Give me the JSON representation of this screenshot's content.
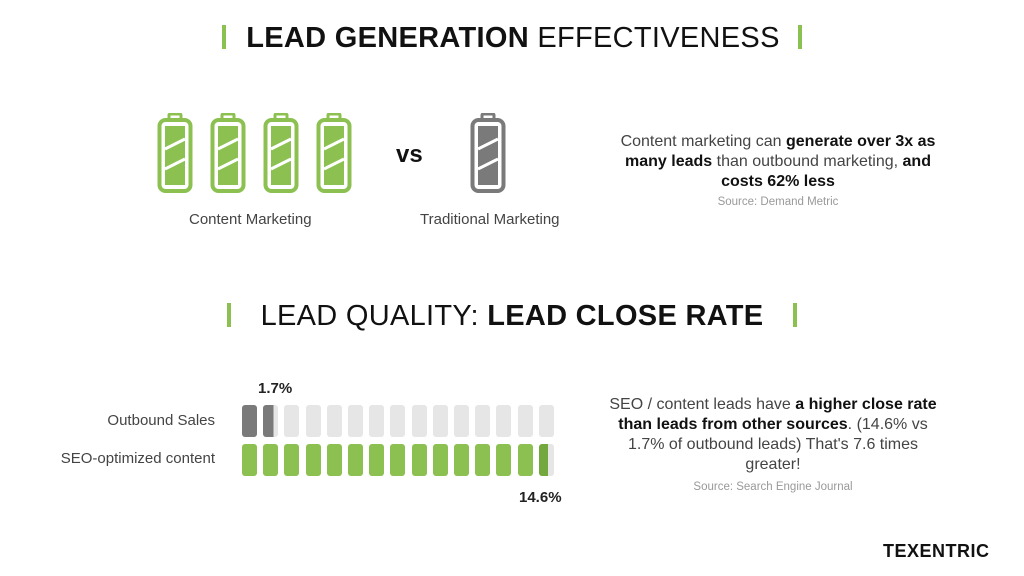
{
  "section1": {
    "title_bold": "LEAD GENERATION",
    "title_light": "EFFECTIVENESS",
    "vs_label": "vs",
    "content_label": "Content Marketing",
    "traditional_label": "Traditional Marketing",
    "statement": {
      "p1": "Content marketing can ",
      "b1": "generate over 3x as many leads",
      "p2": " than outbound marketing, ",
      "b2": "and costs 62% less"
    },
    "source": "Source: Demand Metric"
  },
  "section2": {
    "title_light": "LEAD QUALITY:",
    "title_bold": "LEAD CLOSE RATE",
    "statement": {
      "p1": "SEO / content leads have ",
      "b1": "a higher close rate than leads from other sources",
      "p2": ". (14.6% vs 1.7% of outbound leads) That's 7.6 times greater!"
    },
    "source": "Source: Search Engine Journal"
  },
  "chart_data": {
    "type": "bar",
    "title": "Lead Close Rate",
    "categories": [
      "Outbound Sales",
      "SEO-optimized content"
    ],
    "values": [
      1.7,
      14.6
    ],
    "value_labels": [
      "1.7%",
      "14.6%"
    ],
    "segments_total": 15,
    "segment_unit": 1,
    "xlabel": "",
    "ylabel": "",
    "colors": [
      "#7a7a7a",
      "#8cc152"
    ]
  },
  "brand": "TEXENTRIC",
  "colors": {
    "accent_green": "#8cc152",
    "dark_green": "#72a83e",
    "gray_fill": "#7a7a7a",
    "empty_segment": "#e6e6e6"
  }
}
